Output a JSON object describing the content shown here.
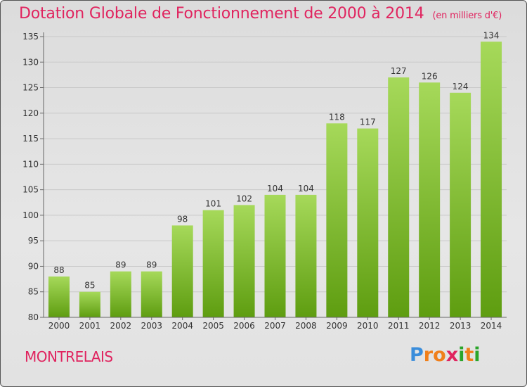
{
  "header": {
    "title": "Dotation Globale de Fonctionnement de 2000 à 2014",
    "unit": "(en milliers d'€)"
  },
  "footer": {
    "commune": "MONTRELAIS",
    "logo_letters": [
      "P",
      "r",
      "o",
      "x",
      "i",
      "t",
      "i"
    ],
    "logo_colors": [
      "#3a8ddb",
      "#f07f1a",
      "#f07f1a",
      "#e0245f",
      "#2aa52a",
      "#f07f1a",
      "#2aa52a"
    ]
  },
  "colors": {
    "bar_light": "#a6d95a",
    "bar_dark": "#5e9d10",
    "title": "#e0245f",
    "grid": "#c8c8c8",
    "axis": "#666666"
  },
  "chart_data": {
    "type": "bar",
    "title": "Dotation Globale de Fonctionnement de 2000 à 2014",
    "categories": [
      "2000",
      "2001",
      "2002",
      "2003",
      "2004",
      "2005",
      "2006",
      "2007",
      "2008",
      "2009",
      "2010",
      "2011",
      "2012",
      "2013",
      "2014"
    ],
    "values": [
      88,
      85,
      89,
      89,
      98,
      101,
      102,
      104,
      104,
      118,
      117,
      127,
      126,
      124,
      134
    ],
    "ylim": [
      80,
      135
    ],
    "yticks": [
      80,
      85,
      90,
      95,
      100,
      105,
      110,
      115,
      120,
      125,
      130,
      135
    ],
    "grid": true,
    "data_labels": true
  }
}
